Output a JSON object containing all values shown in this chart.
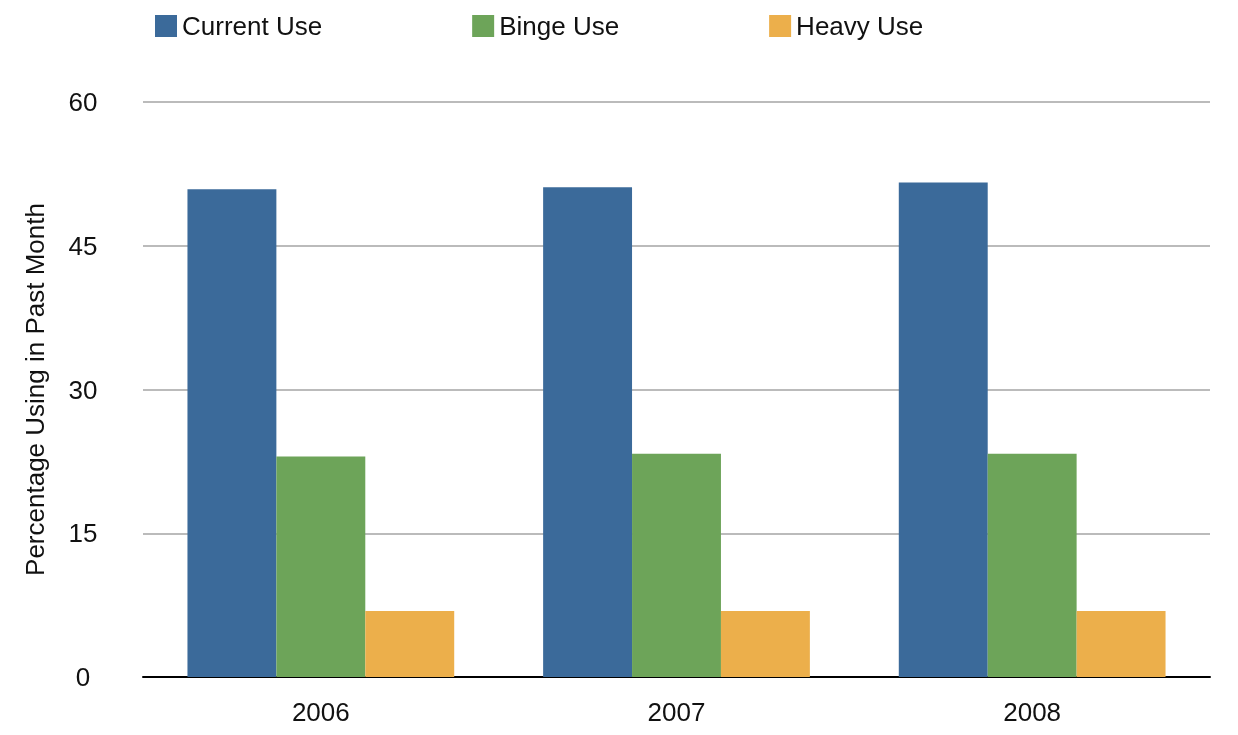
{
  "chart_data": {
    "type": "bar",
    "ylabel": "Percentage Using in Past Month",
    "categories": [
      "2006",
      "2007",
      "2008"
    ],
    "series": [
      {
        "name": "Current Use",
        "color": "#3b6a9a",
        "values": [
          50.9,
          51.1,
          51.6
        ]
      },
      {
        "name": "Binge Use",
        "color": "#6da459",
        "values": [
          23.0,
          23.3,
          23.3
        ]
      },
      {
        "name": "Heavy Use",
        "color": "#ecaf4b",
        "values": [
          6.9,
          6.9,
          6.9
        ]
      }
    ],
    "ylim": [
      0,
      60
    ],
    "yticks": [
      0,
      15,
      30,
      45,
      60
    ],
    "grid": "y",
    "legend": "top left"
  }
}
